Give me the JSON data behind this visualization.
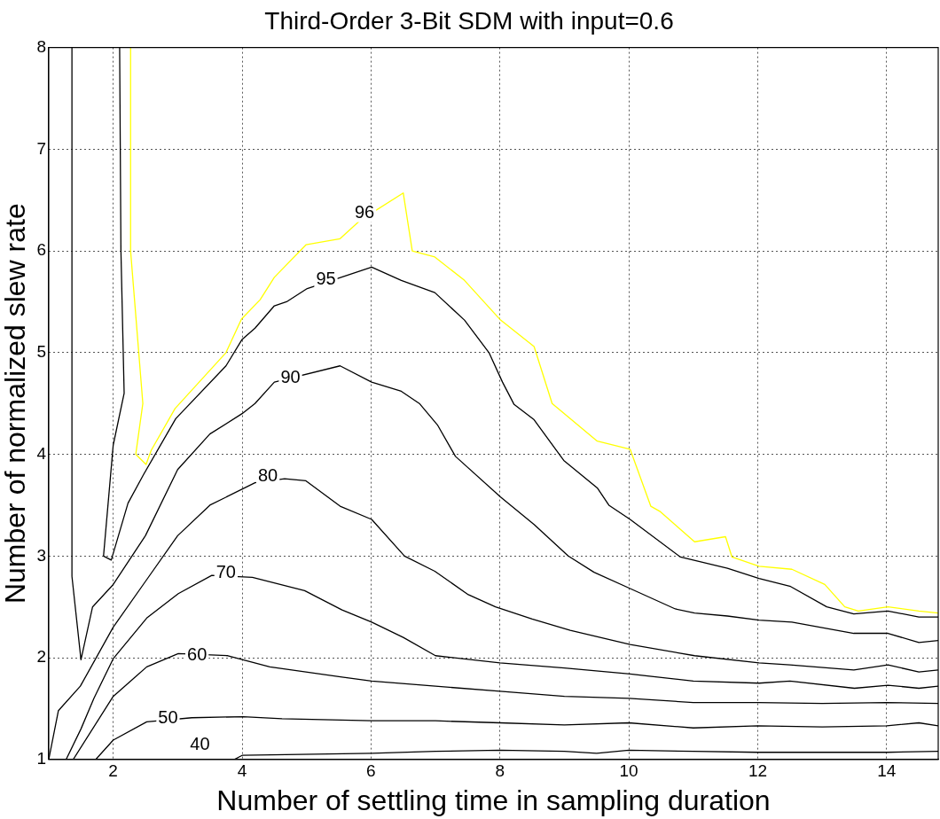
{
  "chart_data": {
    "type": "line",
    "title": "Third-Order 3-Bit SDM with input=0.6",
    "xlabel": "Number of settling time in sampling duration",
    "ylabel": "Number of normalized slew rate",
    "xlim": [
      1,
      14.8
    ],
    "xticks": [
      2,
      4,
      6,
      8,
      10,
      12,
      14
    ],
    "ylim": [
      1,
      8
    ],
    "yticks": [
      1,
      2,
      3,
      4,
      5,
      6,
      7,
      8
    ],
    "grid": true,
    "line_style": "solid",
    "marker": "none",
    "series": [
      {
        "color": "#000000",
        "x": [
          3.88,
          4.0,
          4.9,
          6.01,
          7,
          8,
          9,
          9.5,
          10,
          11,
          12,
          13,
          14,
          14.8
        ],
        "values": [
          1.0,
          1.04,
          1.05,
          1.06,
          1.08,
          1.09,
          1.08,
          1.06,
          1.09,
          1.08,
          1.07,
          1.07,
          1.07,
          1.08
        ]
      },
      {
        "color": "#000000",
        "x": [
          1.73,
          2.0,
          2.52,
          3.22,
          4.02,
          4.62,
          6.01,
          7,
          8,
          9,
          10,
          11,
          12,
          13,
          14,
          14.5,
          14.8
        ],
        "values": [
          1.0,
          1.19,
          1.37,
          1.41,
          1.42,
          1.4,
          1.38,
          1.38,
          1.36,
          1.34,
          1.36,
          1.31,
          1.33,
          1.32,
          1.33,
          1.36,
          1.33
        ]
      },
      {
        "color": "#000000",
        "x": [
          1.38,
          2.0,
          2.52,
          3.01,
          3.78,
          4.43,
          5.55,
          6.01,
          7,
          8,
          9,
          10,
          11,
          12,
          13,
          14,
          14.8
        ],
        "values": [
          1.0,
          1.62,
          1.91,
          2.04,
          2.02,
          1.91,
          1.81,
          1.77,
          1.72,
          1.67,
          1.62,
          1.6,
          1.56,
          1.56,
          1.55,
          1.56,
          1.55
        ]
      },
      {
        "color": "#000000",
        "x": [
          1.27,
          1.5,
          1.7,
          2.0,
          2.52,
          3.01,
          3.53,
          4.16,
          4.97,
          5.55,
          6.01,
          6.5,
          7.0,
          8.0,
          9.0,
          10.02,
          11.0,
          12.02,
          12.5,
          13.5,
          14.02,
          14.5,
          14.8
        ],
        "values": [
          1.0,
          1.3,
          1.6,
          1.99,
          2.39,
          2.63,
          2.81,
          2.79,
          2.66,
          2.47,
          2.35,
          2.2,
          2.02,
          1.95,
          1.9,
          1.84,
          1.77,
          1.75,
          1.77,
          1.7,
          1.73,
          1.7,
          1.72
        ]
      },
      {
        "color": "#000000",
        "x": [
          1.0,
          1.15,
          1.49,
          2.0,
          2.5,
          3.0,
          3.5,
          4.2,
          4.66,
          4.99,
          5.52,
          6.01,
          6.52,
          6.99,
          7.51,
          7.93,
          8.5,
          9.09,
          10.02,
          11.02,
          12.02,
          12.5,
          13.49,
          14.02,
          14.5,
          14.8
        ],
        "values": [
          1.0,
          1.48,
          1.72,
          2.3,
          2.75,
          3.2,
          3.5,
          3.72,
          3.76,
          3.74,
          3.49,
          3.36,
          3.0,
          2.85,
          2.62,
          2.5,
          2.38,
          2.27,
          2.13,
          2.02,
          1.95,
          1.93,
          1.88,
          1.93,
          1.86,
          1.88
        ]
      },
      {
        "color": "#000000",
        "x": [
          1.36,
          1.36,
          1.5,
          1.68,
          2.0,
          2.5,
          3.0,
          3.5,
          4.0,
          4.2,
          4.5,
          5.52,
          6.01,
          6.47,
          6.75,
          7.03,
          7.31,
          8.01,
          8.53,
          9.06,
          9.46,
          10.02,
          10.72,
          11.02,
          11.53,
          12.02,
          12.53,
          13.49,
          14.02,
          14.5,
          14.8
        ],
        "values": [
          8.0,
          2.8,
          1.98,
          2.5,
          2.72,
          3.2,
          3.85,
          4.2,
          4.4,
          4.5,
          4.71,
          4.87,
          4.71,
          4.62,
          4.5,
          4.29,
          3.98,
          3.58,
          3.31,
          3.0,
          2.84,
          2.68,
          2.48,
          2.44,
          2.41,
          2.37,
          2.35,
          2.24,
          2.24,
          2.15,
          2.17
        ]
      },
      {
        "color": "#000000",
        "x": [
          2.1,
          2.12,
          2.17,
          2.0,
          1.85,
          1.97,
          2.23,
          2.47,
          2.97,
          3.75,
          4.0,
          4.2,
          4.5,
          4.69,
          5.01,
          6.01,
          6.47,
          6.99,
          7.45,
          7.83,
          8.04,
          8.22,
          8.53,
          8.99,
          9.51,
          9.69,
          10.02,
          10.8,
          11.53,
          12.02,
          12.51,
          13.07,
          13.49,
          14.02,
          14.5,
          14.8
        ],
        "values": [
          8.0,
          6.0,
          4.6,
          4.09,
          3.0,
          2.96,
          3.52,
          3.8,
          4.35,
          4.87,
          5.13,
          5.24,
          5.46,
          5.5,
          5.63,
          5.84,
          5.71,
          5.59,
          5.32,
          5.0,
          4.71,
          4.49,
          4.34,
          3.94,
          3.67,
          3.5,
          3.36,
          2.99,
          2.88,
          2.78,
          2.7,
          2.5,
          2.43,
          2.46,
          2.4,
          2.4
        ]
      },
      {
        "color": "#ffff00",
        "x": [
          2.27,
          2.27,
          2.46,
          2.35,
          2.51,
          2.59,
          2.96,
          3.75,
          3.99,
          4.28,
          4.5,
          4.99,
          5.52,
          5.83,
          6.5,
          6.64,
          6.99,
          7.45,
          8.01,
          8.53,
          8.81,
          9.51,
          10.02,
          10.34,
          10.48,
          11.02,
          11.5,
          11.6,
          12.02,
          12.53,
          13.04,
          13.35,
          13.56,
          14.02,
          14.5,
          14.8
        ],
        "values": [
          8.0,
          6.0,
          4.5,
          4.0,
          3.9,
          4.04,
          4.45,
          5.0,
          5.33,
          5.52,
          5.74,
          6.06,
          6.12,
          6.3,
          6.57,
          6.0,
          5.94,
          5.71,
          5.32,
          5.06,
          4.5,
          4.13,
          4.05,
          3.49,
          3.44,
          3.14,
          3.19,
          2.99,
          2.9,
          2.87,
          2.72,
          2.5,
          2.46,
          2.5,
          2.46,
          2.44
        ]
      }
    ],
    "annotations": [
      {
        "text": "96",
        "x": 5.9,
        "y": 6.37
      },
      {
        "text": "95",
        "x": 5.3,
        "y": 5.72
      },
      {
        "text": "90",
        "x": 4.75,
        "y": 4.75
      },
      {
        "text": "80",
        "x": 4.4,
        "y": 3.78
      },
      {
        "text": "70",
        "x": 3.75,
        "y": 2.83
      },
      {
        "text": "60",
        "x": 3.3,
        "y": 2.02
      },
      {
        "text": "50",
        "x": 2.85,
        "y": 1.4
      },
      "40"
    ]
  }
}
